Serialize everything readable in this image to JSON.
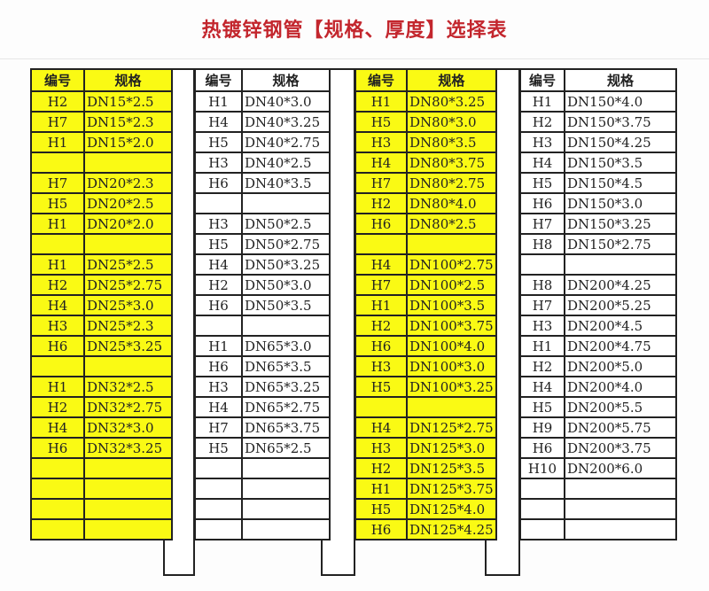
{
  "title": "热镀锌钢管【规格、厚度】选择表",
  "colors": {
    "title": "#c3262d",
    "highlight": "#fafa14"
  },
  "tables": [
    {
      "highlight": true,
      "headers": [
        "编号",
        "规格"
      ],
      "rows": [
        [
          "H2",
          "DN15*2.5"
        ],
        [
          "H7",
          "DN15*2.3"
        ],
        [
          "H1",
          "DN15*2.0"
        ],
        [
          "",
          ""
        ],
        [
          "H7",
          "DN20*2.3"
        ],
        [
          "H5",
          "DN20*2.5"
        ],
        [
          "H1",
          "DN20*2.0"
        ],
        [
          "",
          ""
        ],
        [
          "H1",
          "DN25*2.5"
        ],
        [
          "H2",
          "DN25*2.75"
        ],
        [
          "H4",
          "DN25*3.0"
        ],
        [
          "H3",
          "DN25*2.3"
        ],
        [
          "H6",
          "DN25*3.25"
        ],
        [
          "",
          ""
        ],
        [
          "H1",
          "DN32*2.5"
        ],
        [
          "H2",
          "DN32*2.75"
        ],
        [
          "H4",
          "DN32*3.0"
        ],
        [
          "H6",
          "DN32*3.25"
        ],
        [
          "",
          ""
        ],
        [
          "",
          ""
        ],
        [
          "",
          ""
        ],
        [
          "",
          ""
        ]
      ]
    },
    {
      "highlight": false,
      "headers": [
        "编号",
        "规格"
      ],
      "rows": [
        [
          "H1",
          "DN40*3.0"
        ],
        [
          "H4",
          "DN40*3.25"
        ],
        [
          "H5",
          "DN40*2.75"
        ],
        [
          "H3",
          "DN40*2.5"
        ],
        [
          "H6",
          "DN40*3.5"
        ],
        [
          "",
          ""
        ],
        [
          "H3",
          "DN50*2.5"
        ],
        [
          "H5",
          "DN50*2.75"
        ],
        [
          "H4",
          "DN50*3.25"
        ],
        [
          "H2",
          "DN50*3.0"
        ],
        [
          "H6",
          "DN50*3.5"
        ],
        [
          "",
          ""
        ],
        [
          "H1",
          "DN65*3.0"
        ],
        [
          "H6",
          "DN65*3.5"
        ],
        [
          "H3",
          "DN65*3.25"
        ],
        [
          "H4",
          "DN65*2.75"
        ],
        [
          "H7",
          "DN65*3.75"
        ],
        [
          "H5",
          "DN65*2.5"
        ],
        [
          "",
          ""
        ],
        [
          "",
          ""
        ],
        [
          "",
          ""
        ],
        [
          "",
          ""
        ]
      ]
    },
    {
      "highlight": true,
      "headers": [
        "编号",
        "规格"
      ],
      "rows": [
        [
          "H1",
          "DN80*3.25"
        ],
        [
          "H5",
          "DN80*3.0"
        ],
        [
          "H3",
          "DN80*3.5"
        ],
        [
          "H4",
          "DN80*3.75"
        ],
        [
          "H7",
          "DN80*2.75"
        ],
        [
          "H2",
          "DN80*4.0"
        ],
        [
          "H6",
          "DN80*2.5"
        ],
        [
          "",
          ""
        ],
        [
          "H4",
          "DN100*2.75"
        ],
        [
          "H7",
          "DN100*2.5"
        ],
        [
          "H1",
          "DN100*3.5"
        ],
        [
          "H2",
          "DN100*3.75"
        ],
        [
          "H6",
          "DN100*4.0"
        ],
        [
          "H3",
          "DN100*3.0"
        ],
        [
          "H5",
          "DN100*3.25"
        ],
        [
          "",
          ""
        ],
        [
          "H4",
          "DN125*2.75"
        ],
        [
          "H3",
          "DN125*3.0"
        ],
        [
          "H2",
          "DN125*3.5"
        ],
        [
          "H1",
          "DN125*3.75"
        ],
        [
          "H5",
          "DN125*4.0"
        ],
        [
          "H6",
          "DN125*4.25"
        ]
      ]
    },
    {
      "highlight": false,
      "headers": [
        "编号",
        "规格"
      ],
      "rows": [
        [
          "H1",
          "DN150*4.0"
        ],
        [
          "H2",
          "DN150*3.75"
        ],
        [
          "H3",
          "DN150*4.25"
        ],
        [
          "H4",
          "DN150*3.5"
        ],
        [
          "H5",
          "DN150*4.5"
        ],
        [
          "H6",
          "DN150*3.0"
        ],
        [
          "H7",
          "DN150*3.25"
        ],
        [
          "H8",
          "DN150*2.75"
        ],
        [
          "",
          ""
        ],
        [
          "H8",
          "DN200*4.25"
        ],
        [
          "H7",
          "DN200*5.25"
        ],
        [
          "H3",
          "DN200*4.5"
        ],
        [
          "H1",
          "DN200*4.75"
        ],
        [
          "H2",
          "DN200*5.0"
        ],
        [
          "H4",
          "DN200*4.0"
        ],
        [
          "H5",
          "DN200*5.5"
        ],
        [
          "H9",
          "DN200*5.75"
        ],
        [
          "H6",
          "DN200*3.75"
        ],
        [
          "H10",
          "DN200*6.0"
        ],
        [
          "",
          ""
        ],
        [
          "",
          ""
        ],
        [
          "",
          ""
        ]
      ]
    }
  ]
}
